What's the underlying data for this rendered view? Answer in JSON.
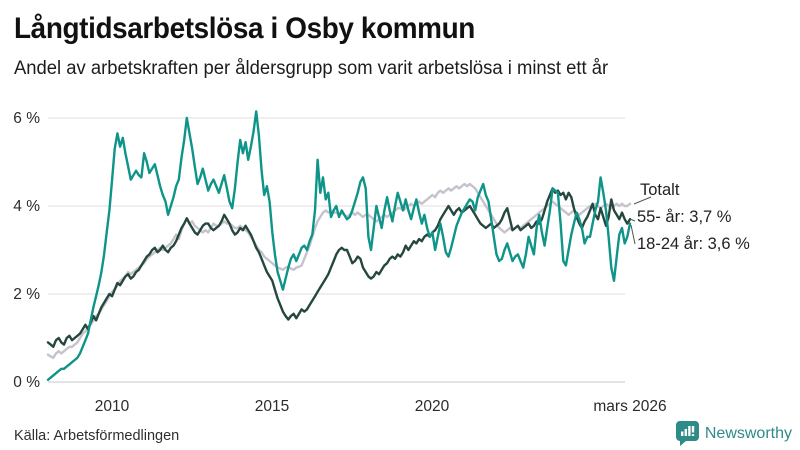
{
  "header": {
    "title": "Långtidsarbetslösa i Osby kommun",
    "subtitle": "Andel av arbetskraften per åldersgrupp som varit arbetslösa i minst ett år"
  },
  "footer": {
    "source": "Källa: Arbetsförmedlingen",
    "brand": "Newsworthy"
  },
  "colors": {
    "total_line": "#c4c3ce",
    "age55_line": "#26473e",
    "age1824_line": "#0e9488",
    "brand_teal": "#2e8b87",
    "grid": "#dfdfe3"
  },
  "chart_data": {
    "type": "line",
    "title": "Långtidsarbetslösa i Osby kommun",
    "subtitle": "Andel av arbetskraften per åldersgrupp som varit arbetslösa i minst ett år",
    "x_unit": "month",
    "x_start": "2008-01",
    "x_end": "2026-03",
    "grid": true,
    "legend_position": "end-of-line-labels",
    "x_axis": {
      "tick_labels": [
        "2010",
        "2015",
        "2020",
        "mars 2026"
      ]
    },
    "y_axis": {
      "unit": "%",
      "range": [
        0,
        6.5
      ],
      "ticks": [
        {
          "value": 6,
          "label": "6 %"
        },
        {
          "value": 4,
          "label": "4 %"
        },
        {
          "value": 2,
          "label": "2 %"
        },
        {
          "value": 0,
          "label": "0 %"
        }
      ]
    },
    "series": [
      {
        "name": "Totalt",
        "end_label": "Totalt",
        "color": "#c4c3ce",
        "values": [
          0.62,
          0.58,
          0.55,
          0.65,
          0.7,
          0.65,
          0.7,
          0.75,
          0.8,
          0.8,
          0.85,
          0.9,
          1.0,
          1.1,
          1.15,
          1.25,
          1.3,
          1.4,
          1.5,
          1.55,
          1.65,
          1.75,
          1.85,
          1.95,
          2.05,
          2.1,
          2.2,
          2.3,
          2.35,
          2.4,
          2.5,
          2.45,
          2.5,
          2.55,
          2.6,
          2.65,
          2.7,
          2.8,
          2.85,
          2.9,
          2.95,
          3.0,
          3.05,
          3.0,
          3.05,
          3.1,
          3.15,
          3.25,
          3.35,
          3.25,
          3.45,
          3.6,
          3.72,
          3.6,
          3.65,
          3.55,
          3.5,
          3.45,
          3.4,
          3.45,
          3.4,
          3.5,
          3.6,
          3.55,
          3.55,
          3.6,
          3.65,
          3.6,
          3.6,
          3.55,
          3.5,
          3.5,
          3.55,
          3.5,
          3.45,
          3.4,
          3.3,
          3.2,
          3.1,
          3.0,
          2.95,
          2.85,
          2.8,
          2.75,
          2.7,
          2.65,
          2.6,
          2.58,
          2.55,
          2.6,
          2.62,
          2.58,
          2.55,
          2.6,
          2.62,
          2.65,
          2.8,
          2.95,
          3.1,
          3.3,
          3.5,
          3.65,
          3.75,
          3.85,
          3.9,
          3.85,
          3.9,
          3.85,
          3.85,
          3.8,
          3.85,
          3.8,
          3.75,
          3.8,
          3.85,
          3.8,
          3.85,
          3.8,
          3.75,
          3.8,
          3.8,
          3.75,
          3.7,
          3.65,
          3.7,
          3.75,
          3.8,
          3.75,
          3.8,
          3.85,
          3.9,
          3.95,
          3.95,
          3.9,
          3.95,
          4.0,
          4.05,
          4.0,
          4.05,
          4.1,
          4.05,
          4.1,
          4.15,
          4.2,
          4.25,
          4.2,
          4.3,
          4.35,
          4.3,
          4.35,
          4.4,
          4.35,
          4.4,
          4.45,
          4.4,
          4.45,
          4.5,
          4.45,
          4.5,
          4.45,
          4.4,
          4.3,
          4.2,
          4.1,
          4.0,
          3.9,
          3.8,
          3.7,
          3.6,
          3.5,
          3.45,
          3.4,
          3.45,
          3.5,
          3.45,
          3.5,
          3.55,
          3.5,
          3.55,
          3.6,
          3.65,
          3.7,
          3.75,
          3.8,
          3.85,
          3.9,
          3.95,
          4.0,
          4.05,
          4.1,
          4.05,
          4.0,
          3.95,
          3.9,
          3.85,
          3.8,
          3.85,
          3.9,
          3.85,
          3.8,
          3.85,
          3.9,
          3.95,
          4.0,
          4.0,
          4.05,
          4.0,
          3.95,
          4.0,
          4.05,
          4.0,
          3.95,
          4.0,
          4.05,
          4.0,
          4.05,
          4.0,
          4.0,
          4.05
        ]
      },
      {
        "name": "55- år",
        "end_label": "55- år: 3,7 %",
        "end_value": "3,7 %",
        "color": "#26473e",
        "values": [
          0.9,
          0.85,
          0.8,
          0.95,
          1.0,
          0.9,
          0.85,
          1.0,
          1.05,
          0.95,
          1.0,
          1.05,
          1.1,
          1.2,
          1.3,
          1.2,
          1.35,
          1.5,
          1.4,
          1.55,
          1.7,
          1.8,
          1.9,
          2.0,
          1.95,
          2.1,
          2.25,
          2.2,
          2.3,
          2.4,
          2.45,
          2.35,
          2.4,
          2.5,
          2.55,
          2.65,
          2.75,
          2.85,
          2.9,
          3.0,
          3.05,
          2.95,
          3.0,
          3.1,
          3.0,
          2.95,
          3.05,
          3.1,
          3.2,
          3.35,
          3.5,
          3.6,
          3.72,
          3.6,
          3.5,
          3.4,
          3.35,
          3.45,
          3.55,
          3.6,
          3.6,
          3.5,
          3.45,
          3.5,
          3.55,
          3.65,
          3.8,
          3.7,
          3.6,
          3.45,
          3.35,
          3.4,
          3.5,
          3.45,
          3.55,
          3.45,
          3.35,
          3.2,
          3.05,
          2.95,
          2.8,
          2.65,
          2.5,
          2.4,
          2.3,
          2.1,
          1.9,
          1.75,
          1.6,
          1.5,
          1.42,
          1.5,
          1.55,
          1.45,
          1.55,
          1.65,
          1.6,
          1.65,
          1.75,
          1.85,
          1.95,
          2.05,
          2.15,
          2.25,
          2.35,
          2.45,
          2.6,
          2.75,
          2.9,
          3.0,
          3.05,
          3.0,
          3.0,
          2.85,
          2.7,
          2.75,
          2.85,
          2.8,
          2.6,
          2.5,
          2.4,
          2.35,
          2.4,
          2.5,
          2.45,
          2.55,
          2.65,
          2.7,
          2.8,
          2.85,
          2.8,
          2.9,
          2.85,
          2.95,
          3.1,
          3.0,
          3.1,
          3.2,
          3.15,
          3.25,
          3.2,
          3.3,
          3.35,
          3.3,
          3.4,
          3.45,
          3.55,
          3.7,
          3.8,
          3.9,
          4.0,
          3.9,
          3.8,
          3.9,
          3.95,
          3.85,
          3.9,
          3.95,
          4.0,
          3.9,
          3.8,
          3.7,
          3.6,
          3.55,
          3.5,
          3.55,
          3.6,
          3.5,
          3.55,
          3.6,
          3.7,
          3.85,
          3.95,
          3.7,
          3.45,
          3.5,
          3.55,
          3.45,
          3.5,
          3.55,
          3.6,
          3.5,
          3.55,
          3.65,
          3.6,
          3.7,
          3.9,
          4.1,
          4.25,
          4.4,
          4.3,
          4.35,
          4.25,
          4.3,
          4.15,
          4.3,
          4.2,
          3.95,
          3.75,
          3.6,
          3.5,
          3.65,
          3.75,
          3.9,
          4.05,
          3.8,
          3.7,
          3.95,
          3.75,
          3.55,
          3.75,
          4.15,
          3.9,
          3.8,
          3.7,
          3.85,
          3.7,
          3.6,
          3.7
        ]
      },
      {
        "name": "18-24 år",
        "end_label": "18-24 år: 3,6 %",
        "end_value": "3,6 %",
        "color": "#0e9488",
        "values": [
          0.05,
          0.1,
          0.15,
          0.2,
          0.25,
          0.3,
          0.3,
          0.35,
          0.4,
          0.45,
          0.5,
          0.55,
          0.65,
          0.8,
          0.95,
          1.1,
          1.4,
          1.7,
          1.95,
          2.2,
          2.5,
          2.9,
          3.4,
          3.9,
          4.6,
          5.3,
          5.65,
          5.35,
          5.55,
          5.2,
          4.9,
          4.6,
          4.7,
          4.8,
          4.7,
          4.65,
          5.2,
          5.0,
          4.75,
          4.85,
          4.95,
          4.7,
          4.45,
          4.25,
          4.1,
          3.8,
          4.0,
          4.2,
          4.45,
          4.6,
          5.1,
          5.5,
          6.0,
          5.65,
          5.3,
          4.9,
          4.5,
          4.65,
          4.85,
          4.6,
          4.35,
          4.5,
          4.6,
          4.45,
          4.3,
          4.5,
          4.7,
          4.4,
          4.1,
          3.95,
          4.4,
          5.0,
          5.5,
          5.2,
          5.45,
          5.05,
          5.35,
          5.7,
          6.15,
          5.6,
          4.8,
          4.25,
          4.45,
          4.1,
          3.4,
          2.9,
          2.5,
          2.3,
          2.1,
          2.35,
          2.6,
          2.8,
          2.9,
          2.75,
          2.9,
          3.05,
          3.1,
          3.0,
          3.2,
          3.35,
          3.9,
          5.05,
          4.3,
          4.65,
          4.15,
          4.3,
          3.75,
          3.9,
          4.0,
          3.75,
          3.9,
          3.8,
          3.7,
          3.75,
          3.9,
          4.1,
          4.3,
          4.55,
          4.65,
          4.4,
          3.3,
          3.0,
          3.5,
          4.0,
          3.75,
          3.5,
          3.9,
          4.2,
          3.9,
          3.65,
          4.0,
          4.3,
          4.1,
          3.9,
          4.15,
          3.9,
          3.7,
          3.95,
          4.15,
          3.85,
          3.6,
          3.8,
          3.5,
          3.3,
          3.4,
          3.0,
          3.3,
          3.6,
          3.3,
          2.95,
          2.85,
          3.05,
          3.3,
          3.55,
          3.7,
          3.85,
          3.95,
          4.05,
          4.15,
          4.1,
          3.9,
          4.2,
          4.35,
          4.5,
          4.25,
          4.1,
          3.7,
          3.3,
          2.9,
          2.75,
          2.8,
          3.0,
          3.15,
          2.95,
          2.75,
          2.85,
          2.9,
          2.75,
          2.6,
          2.9,
          3.3,
          3.1,
          2.9,
          3.5,
          3.8,
          3.4,
          3.1,
          3.5,
          3.9,
          4.4,
          4.35,
          4.3,
          3.6,
          2.75,
          2.65,
          3.0,
          3.35,
          3.6,
          3.85,
          3.7,
          3.5,
          3.15,
          3.3,
          3.3,
          3.6,
          3.9,
          4.1,
          4.65,
          4.3,
          3.9,
          3.3,
          2.6,
          2.3,
          2.85,
          3.35,
          3.5,
          3.15,
          3.3,
          3.6
        ]
      }
    ]
  }
}
